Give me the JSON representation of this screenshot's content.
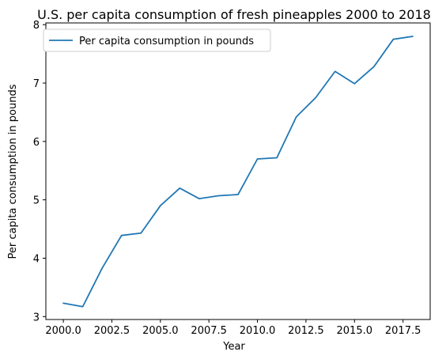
{
  "chart_data": {
    "type": "line",
    "title": "U.S. per capita consumption of fresh pineapples 2000 to 2018",
    "xlabel": "Year",
    "ylabel": "Per capita consumption in pounds",
    "xlim": [
      1999.1,
      2018.9
    ],
    "ylim": [
      2.95,
      8.03
    ],
    "x_ticks": [
      2000.0,
      2002.5,
      2005.0,
      2007.5,
      2010.0,
      2012.5,
      2015.0,
      2017.5
    ],
    "x_tick_labels": [
      "2000.0",
      "2002.5",
      "2005.0",
      "2007.5",
      "2010.0",
      "2012.5",
      "2015.0",
      "2017.5"
    ],
    "y_ticks": [
      3,
      4,
      5,
      6,
      7,
      8
    ],
    "y_tick_labels": [
      "3",
      "4",
      "5",
      "6",
      "7",
      "8"
    ],
    "grid": false,
    "legend_position": "top-left",
    "series": [
      {
        "name": "Per capita consumption in pounds",
        "color": "#1f77b4",
        "x": [
          2000,
          2001,
          2002,
          2003,
          2004,
          2005,
          2006,
          2007,
          2008,
          2009,
          2010,
          2011,
          2012,
          2013,
          2014,
          2015,
          2016,
          2017,
          2018
        ],
        "values": [
          3.23,
          3.17,
          3.83,
          4.39,
          4.43,
          4.9,
          5.2,
          5.02,
          5.07,
          5.09,
          5.7,
          5.72,
          6.42,
          6.75,
          7.2,
          6.99,
          7.28,
          7.75,
          7.8
        ]
      }
    ]
  }
}
